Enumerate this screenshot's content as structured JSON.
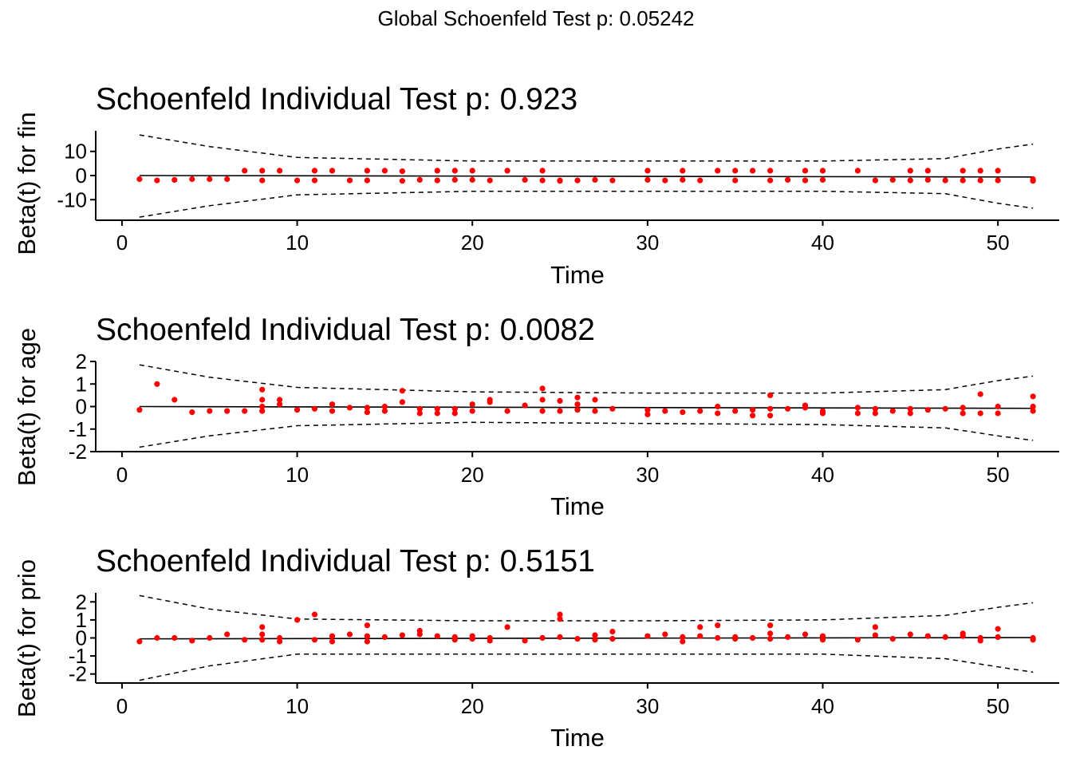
{
  "global_title": "Global Schoenfeld Test p: 0.05242",
  "colors": {
    "points": "#ff0000",
    "lines": "#000000",
    "background": "#ffffff"
  },
  "chart_data": [
    {
      "type": "scatter",
      "title": "Schoenfeld Individual Test p: 0.923",
      "xlabel": "Time",
      "ylabel": "Beta(t) for fin",
      "xlim": [
        -1.5,
        53.5
      ],
      "ylim": [
        -18.5,
        18.5
      ],
      "xticks": [
        0,
        10,
        20,
        30,
        40,
        50
      ],
      "xtick_labels": [
        "0",
        "10",
        "20",
        "30",
        "40",
        "50"
      ],
      "yticks": [
        10,
        0,
        -10
      ],
      "ytick_labels": [
        "10",
        "0",
        "-10"
      ],
      "fit": {
        "x": [
          1,
          52
        ],
        "y": [
          0,
          -0.6
        ]
      },
      "band": {
        "upper": {
          "x": [
            1,
            5,
            10,
            20,
            30,
            40,
            47,
            50,
            52
          ],
          "y": [
            16.8,
            12,
            7.5,
            6,
            6,
            6,
            7,
            11,
            13
          ]
        },
        "lower": {
          "x": [
            1,
            5,
            10,
            20,
            30,
            40,
            47,
            50,
            52
          ],
          "y": [
            -17.2,
            -12.5,
            -8,
            -6.5,
            -6.5,
            -6.5,
            -7.5,
            -11.5,
            -13.5
          ]
        }
      },
      "points": {
        "x": [
          1,
          2,
          3,
          4,
          5,
          6,
          7,
          8,
          8,
          9,
          10,
          11,
          11,
          12,
          13,
          14,
          14,
          15,
          16,
          16,
          17,
          18,
          18,
          19,
          19,
          20,
          20,
          21,
          22,
          23,
          24,
          24,
          25,
          25,
          26,
          27,
          28,
          30,
          30,
          31,
          32,
          32,
          33,
          34,
          35,
          35,
          36,
          37,
          37,
          38,
          39,
          39,
          40,
          40,
          42,
          43,
          44,
          45,
          45,
          46,
          46,
          47,
          48,
          48,
          49,
          49,
          50,
          50,
          52,
          52
        ],
        "y": [
          -1.5,
          -2,
          -1.8,
          -1.5,
          -1.5,
          -1.5,
          2,
          2,
          -2,
          2,
          -2,
          2,
          -2,
          2,
          -2,
          2,
          -2,
          2,
          1.8,
          -2.2,
          -1.8,
          2,
          -2,
          2,
          -1.8,
          2,
          -1.8,
          -2,
          2,
          -1.8,
          2,
          -2,
          -2,
          -2.2,
          -2,
          -1.8,
          -2,
          2,
          -1.8,
          -2,
          2,
          -1.8,
          -2,
          2,
          2,
          -2,
          2,
          2,
          -2,
          -1.8,
          2,
          -2,
          2,
          -1.8,
          2,
          -2,
          -1.8,
          2,
          -2,
          2,
          -1.8,
          -2,
          2,
          -2,
          2,
          -2,
          2,
          -2,
          -1.5,
          -2.2
        ]
      }
    },
    {
      "type": "scatter",
      "title": "Schoenfeld Individual Test p: 0.0082",
      "xlabel": "Time",
      "ylabel": "Beta(t) for age",
      "xlim": [
        -1.5,
        53.5
      ],
      "ylim": [
        -2,
        2
      ],
      "xticks": [
        0,
        10,
        20,
        30,
        40,
        50
      ],
      "xtick_labels": [
        "0",
        "10",
        "20",
        "30",
        "40",
        "50"
      ],
      "yticks": [
        2,
        1,
        0,
        -1,
        -2
      ],
      "ytick_labels": [
        "2",
        "1",
        "0",
        "-1",
        "-2"
      ],
      "fit": {
        "x": [
          1,
          52
        ],
        "y": [
          0,
          -0.08
        ]
      },
      "band": {
        "upper": {
          "x": [
            1,
            5,
            10,
            20,
            30,
            40,
            47,
            50,
            52
          ],
          "y": [
            1.85,
            1.3,
            0.85,
            0.65,
            0.6,
            0.6,
            0.75,
            1.15,
            1.35
          ]
        },
        "lower": {
          "x": [
            1,
            5,
            10,
            20,
            30,
            40,
            47,
            50,
            52
          ],
          "y": [
            -1.8,
            -1.3,
            -0.85,
            -0.7,
            -0.75,
            -0.8,
            -0.95,
            -1.3,
            -1.5
          ]
        }
      },
      "points": {
        "x": [
          1,
          2,
          3,
          4,
          5,
          6,
          7,
          8,
          8,
          8,
          8,
          9,
          9,
          10,
          11,
          12,
          12,
          13,
          14,
          14,
          15,
          15,
          16,
          16,
          17,
          17,
          18,
          18,
          19,
          19,
          20,
          20,
          21,
          21,
          22,
          23,
          24,
          24,
          24,
          25,
          25,
          26,
          26,
          26,
          27,
          27,
          28,
          30,
          30,
          31,
          32,
          33,
          34,
          34,
          35,
          36,
          36,
          37,
          37,
          37,
          38,
          39,
          39,
          40,
          40,
          42,
          42,
          43,
          43,
          44,
          45,
          45,
          46,
          47,
          48,
          48,
          49,
          49,
          50,
          50,
          52,
          52,
          52
        ],
        "y": [
          -0.15,
          1,
          0.3,
          -0.25,
          -0.2,
          -0.2,
          -0.2,
          0.75,
          0.3,
          0,
          -0.2,
          0.3,
          0.1,
          -0.15,
          -0.1,
          0.1,
          -0.2,
          -0.05,
          -0.05,
          -0.25,
          0,
          -0.2,
          0.7,
          0.2,
          -0.1,
          -0.3,
          -0.1,
          -0.3,
          -0.1,
          -0.3,
          0.1,
          -0.2,
          0.2,
          0.3,
          -0.2,
          0.05,
          0.8,
          0.3,
          -0.2,
          0.25,
          -0.2,
          0.4,
          0.1,
          -0.15,
          0.3,
          -0.2,
          -0.1,
          -0.15,
          -0.35,
          -0.2,
          -0.25,
          -0.2,
          0,
          -0.3,
          -0.2,
          -0.15,
          -0.4,
          0.5,
          -0.1,
          -0.4,
          -0.1,
          0.05,
          -0.05,
          -0.2,
          -0.3,
          -0.05,
          -0.3,
          -0.1,
          -0.3,
          -0.2,
          -0.1,
          -0.3,
          -0.15,
          -0.1,
          -0.05,
          -0.3,
          0.55,
          -0.3,
          0,
          -0.3,
          0.45,
          0,
          -0.2
        ]
      }
    },
    {
      "type": "scatter",
      "title": "Schoenfeld Individual Test p: 0.5151",
      "xlabel": "Time",
      "ylabel": "Beta(t) for prio",
      "xlim": [
        -1.5,
        53.5
      ],
      "ylim": [
        -2.5,
        2.5
      ],
      "xticks": [
        0,
        10,
        20,
        30,
        40,
        50
      ],
      "xtick_labels": [
        "0",
        "10",
        "20",
        "30",
        "40",
        "50"
      ],
      "yticks": [
        2,
        1,
        0,
        -1,
        -2
      ],
      "ytick_labels": [
        "2",
        "1",
        "0",
        "-1",
        "-2"
      ],
      "fit": {
        "x": [
          1,
          52
        ],
        "y": [
          -0.05,
          0.02
        ]
      },
      "band": {
        "upper": {
          "x": [
            1,
            5,
            10,
            20,
            30,
            40,
            47,
            50,
            52
          ],
          "y": [
            2.35,
            1.6,
            1.05,
            0.95,
            0.95,
            1.0,
            1.25,
            1.7,
            1.95
          ]
        },
        "lower": {
          "x": [
            1,
            5,
            10,
            20,
            30,
            40,
            47,
            50,
            52
          ],
          "y": [
            -2.35,
            -1.55,
            -0.9,
            -0.9,
            -0.9,
            -0.9,
            -1.15,
            -1.6,
            -1.9
          ]
        }
      },
      "points": {
        "x": [
          1,
          2,
          3,
          4,
          5,
          6,
          7,
          8,
          8,
          8,
          9,
          9,
          10,
          11,
          11,
          12,
          12,
          13,
          14,
          14,
          14,
          15,
          16,
          17,
          17,
          18,
          19,
          19,
          20,
          20,
          21,
          21,
          22,
          23,
          24,
          25,
          25,
          25,
          26,
          27,
          27,
          28,
          28,
          30,
          31,
          32,
          32,
          33,
          33,
          34,
          34,
          35,
          35,
          36,
          37,
          37,
          37,
          38,
          39,
          40,
          40,
          42,
          43,
          43,
          44,
          45,
          46,
          47,
          48,
          48,
          49,
          49,
          50,
          50,
          52,
          52
        ],
        "y": [
          -0.2,
          0,
          0,
          -0.15,
          0,
          0.2,
          -0.1,
          0.6,
          0.2,
          -0.1,
          0,
          -0.2,
          1,
          1.3,
          -0.1,
          0.1,
          -0.2,
          0.2,
          0.7,
          0.1,
          -0.2,
          0.05,
          0.15,
          0.4,
          0.2,
          0.1,
          0.05,
          -0.1,
          0.1,
          -0.05,
          0,
          -0.15,
          0.6,
          -0.15,
          0,
          1.3,
          1.05,
          0.05,
          -0.05,
          0.15,
          -0.1,
          0.35,
          -0.05,
          0.1,
          0.2,
          0.05,
          -0.2,
          0.6,
          0.1,
          0.7,
          0,
          0.05,
          -0.05,
          0,
          0.7,
          0.25,
          -0.05,
          0.05,
          0.2,
          0.1,
          -0.1,
          -0.1,
          0.6,
          0.15,
          -0.05,
          0.2,
          0.1,
          0.05,
          0.25,
          0.1,
          0,
          -0.15,
          0.5,
          0.05,
          0,
          -0.1
        ]
      }
    }
  ]
}
